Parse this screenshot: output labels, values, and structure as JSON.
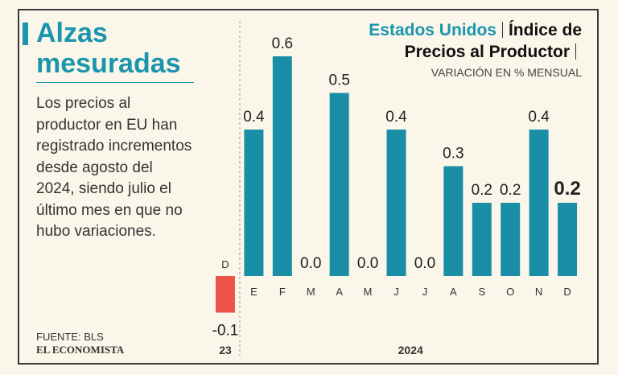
{
  "chart_data": {
    "type": "bar",
    "title_country": "Estados Unidos",
    "title": "Índice de Precios al Productor",
    "subtitle": "VARIACIÓN EN % MENSUAL",
    "categories": [
      "D",
      "E",
      "F",
      "M",
      "A",
      "M",
      "J",
      "J",
      "A",
      "S",
      "O",
      "N",
      "D"
    ],
    "values": [
      -0.1,
      0.4,
      0.6,
      0.0,
      0.5,
      0.0,
      0.4,
      0.0,
      0.3,
      0.2,
      0.2,
      0.4,
      0.2
    ],
    "value_labels": [
      "-0.1",
      "0.4",
      "0.6",
      "0.0",
      "0.5",
      "0.0",
      "0.4",
      "0.0",
      "0.3",
      "0.2",
      "0.2",
      "0.4",
      "0.2"
    ],
    "years": [
      "23",
      "2024"
    ],
    "color": "#1a8ea6",
    "negative_color": "#ec5349"
  },
  "panel": {
    "headline": "Alzas mesuradas",
    "description_lines": [
      "Los precios al",
      "productor en EU han",
      "registrado incrementos",
      "desde agosto del",
      "2024, siendo julio el",
      "último mes en que no",
      "hubo variaciones."
    ],
    "source": "FUENTE: BLS",
    "brand": "EL ECONOMISTA"
  }
}
